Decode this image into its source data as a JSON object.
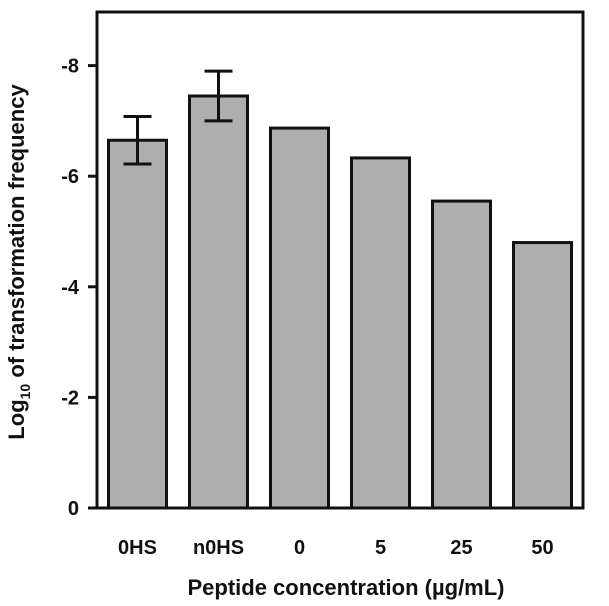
{
  "chart_data": {
    "type": "bar",
    "title": "",
    "xlabel": "Peptide concentration (µg/mL)",
    "ylabel": {
      "prefix": "Log",
      "subscript": "10",
      "suffix": " of transformation frequency"
    },
    "categories": [
      "0HS",
      "n0HS",
      "0",
      "5",
      "25",
      "50"
    ],
    "values": [
      -6.65,
      -7.45,
      -6.87,
      -6.33,
      -5.55,
      -4.8
    ],
    "errors": [
      0.43,
      0.45,
      null,
      null,
      null,
      null
    ],
    "yticks": [
      0,
      -2,
      -4,
      -6,
      -8
    ],
    "ytick_labels": [
      "0",
      "-2",
      "-4",
      "-6",
      "-8"
    ],
    "ylim": [
      0,
      -9
    ],
    "y_inverted": true,
    "grid": false,
    "bar_color": "#aeaeae",
    "edge_color": "#111111"
  }
}
